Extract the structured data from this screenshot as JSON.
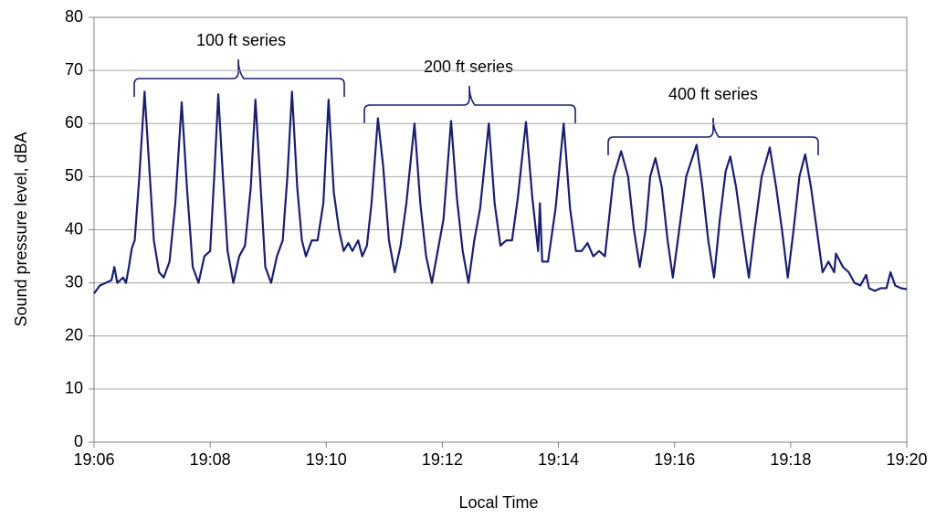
{
  "chart_data": {
    "type": "line",
    "x_label": "Local Time",
    "y_label": "Sound pressure level, dBA",
    "annotations": [
      "100 ft series",
      "200 ft series",
      "400 ft series"
    ],
    "xlim": [
      1146,
      1160
    ],
    "xticks": [
      {
        "value": 1146,
        "label": "19:06"
      },
      {
        "value": 1148,
        "label": "19:08"
      },
      {
        "value": 1150,
        "label": "19:10"
      },
      {
        "value": 1152,
        "label": "19:12"
      },
      {
        "value": 1154,
        "label": "19:14"
      },
      {
        "value": 1156,
        "label": "19:16"
      },
      {
        "value": 1158,
        "label": "19:18"
      },
      {
        "value": 1160,
        "label": "19:20"
      }
    ],
    "ylim": [
      0,
      80
    ],
    "yticks": [
      0,
      10,
      20,
      30,
      40,
      50,
      60,
      70,
      80
    ],
    "grid": true,
    "color": "#1a1f6e",
    "x": [
      1146.0,
      1146.1,
      1146.2,
      1146.3,
      1146.35,
      1146.4,
      1146.5,
      1146.55,
      1146.6,
      1146.65,
      1146.7,
      1146.78,
      1146.87,
      1146.95,
      1147.03,
      1147.12,
      1147.2,
      1147.3,
      1147.4,
      1147.51,
      1147.6,
      1147.7,
      1147.8,
      1147.9,
      1148.0,
      1148.07,
      1148.14,
      1148.22,
      1148.3,
      1148.4,
      1148.5,
      1148.6,
      1148.7,
      1148.78,
      1148.87,
      1148.95,
      1149.05,
      1149.15,
      1149.25,
      1149.33,
      1149.41,
      1149.5,
      1149.58,
      1149.65,
      1149.75,
      1149.85,
      1149.95,
      1150.04,
      1150.13,
      1150.22,
      1150.3,
      1150.38,
      1150.45,
      1150.55,
      1150.62,
      1150.7,
      1150.78,
      1150.89,
      1150.98,
      1151.08,
      1151.18,
      1151.28,
      1151.38,
      1151.52,
      1151.62,
      1151.72,
      1151.82,
      1151.92,
      1152.02,
      1152.15,
      1152.25,
      1152.35,
      1152.45,
      1152.55,
      1152.65,
      1152.8,
      1152.9,
      1153.0,
      1153.1,
      1153.2,
      1153.3,
      1153.44,
      1153.55,
      1153.65,
      1153.68,
      1153.72,
      1153.82,
      1153.95,
      1154.09,
      1154.2,
      1154.3,
      1154.4,
      1154.5,
      1154.6,
      1154.7,
      1154.8,
      1154.88,
      1154.95,
      1155.08,
      1155.2,
      1155.3,
      1155.4,
      1155.5,
      1155.58,
      1155.67,
      1155.78,
      1155.88,
      1155.97,
      1156.08,
      1156.2,
      1156.38,
      1156.48,
      1156.58,
      1156.68,
      1156.78,
      1156.88,
      1156.96,
      1157.06,
      1157.16,
      1157.28,
      1157.38,
      1157.5,
      1157.64,
      1157.75,
      1157.85,
      1157.95,
      1158.05,
      1158.15,
      1158.25,
      1158.35,
      1158.45,
      1158.55,
      1158.65,
      1158.75,
      1158.78,
      1158.9,
      1159.0,
      1159.1,
      1159.2,
      1159.3,
      1159.35,
      1159.45,
      1159.55,
      1159.65,
      1159.72,
      1159.8,
      1159.9,
      1160.0
    ],
    "values": [
      28,
      29.5,
      30,
      30.5,
      33,
      30,
      31,
      30,
      33,
      36.5,
      38,
      50,
      66,
      52,
      38,
      32,
      31,
      34,
      45,
      64,
      48,
      33,
      30,
      35,
      36,
      50,
      65.5,
      50,
      36,
      30,
      35,
      37,
      48,
      64.5,
      48,
      33,
      30,
      35,
      38,
      50,
      66,
      48,
      38,
      35,
      38,
      38,
      45,
      64.5,
      47,
      40,
      36,
      37.5,
      36,
      38,
      35,
      37,
      45,
      61,
      52,
      38,
      32,
      37,
      45,
      60,
      45,
      35,
      30,
      36,
      42,
      60.5,
      46,
      36,
      30,
      38,
      44,
      60,
      45,
      37,
      38,
      38,
      46,
      60.3,
      46,
      36,
      45,
      34,
      34,
      44,
      60,
      44,
      36,
      36,
      37.5,
      35,
      36,
      35,
      43,
      50,
      54.8,
      50,
      40,
      33,
      40,
      50,
      53.5,
      48,
      38,
      31,
      40,
      50,
      56,
      48,
      38,
      31,
      42,
      51,
      53.8,
      48,
      40,
      31,
      40,
      50,
      55.5,
      48,
      40,
      31,
      40,
      50,
      54.2,
      48,
      40,
      32,
      34,
      32,
      35.5,
      33,
      32,
      30,
      29.5,
      31.5,
      29,
      28.5,
      29,
      29,
      32,
      29.5,
      29,
      28.8
    ]
  }
}
